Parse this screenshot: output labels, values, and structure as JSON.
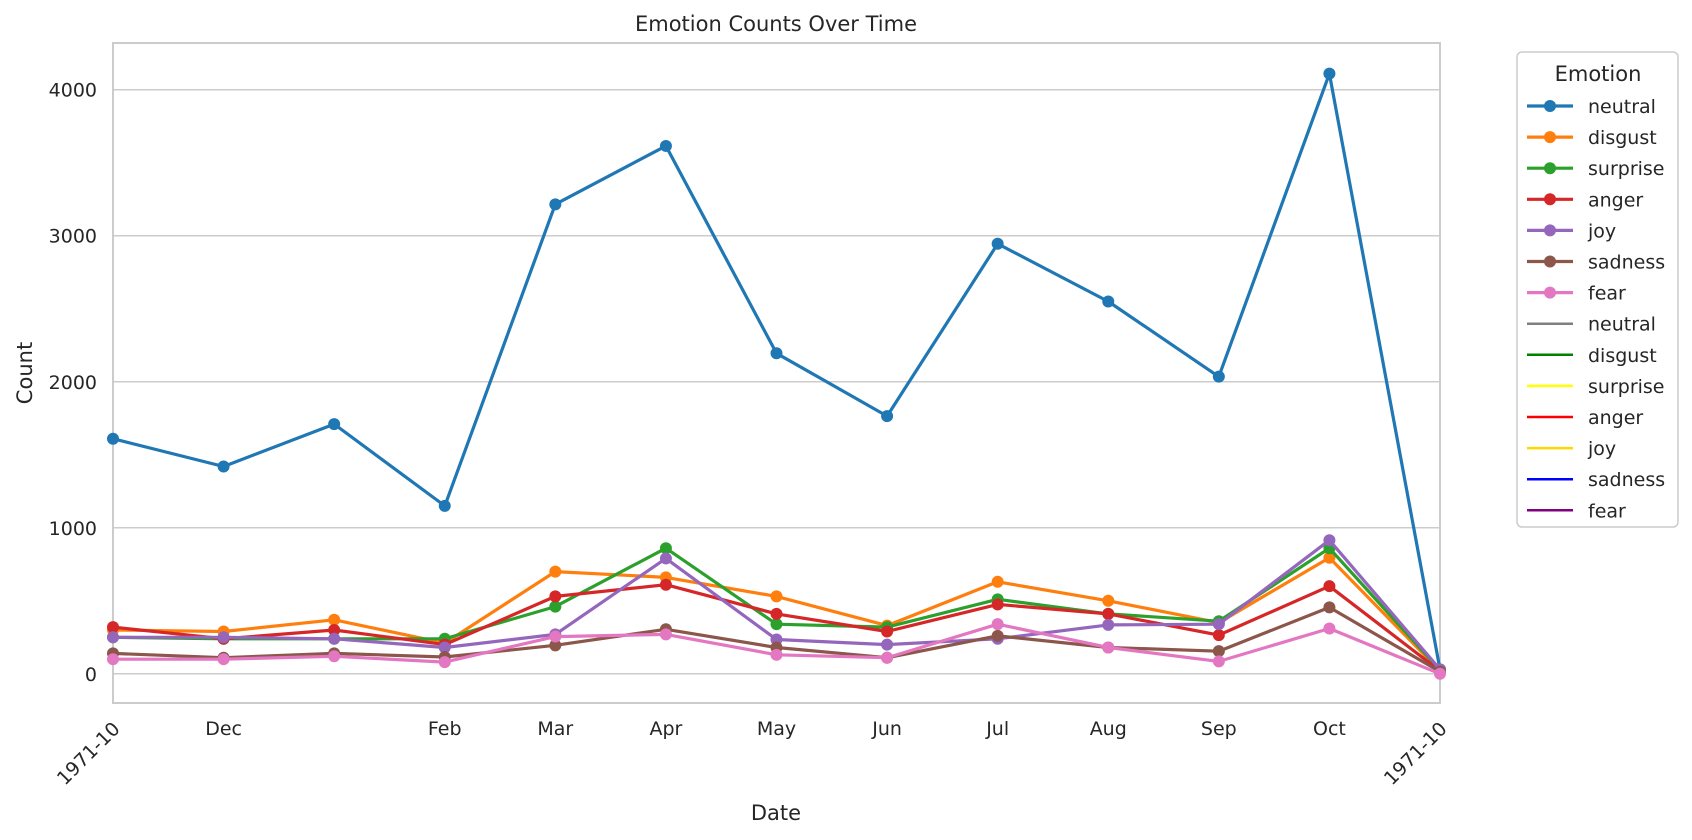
{
  "chart_data": {
    "type": "line",
    "title": "Emotion Counts Over Time",
    "xlabel": "Date",
    "ylabel": "Count",
    "ylim": [
      -200,
      4320
    ],
    "grid": "y",
    "legend_position": "outside-right",
    "legend_title": "Emotion",
    "x_tick_labels": [
      "1971-10",
      "Dec",
      "Feb",
      "Mar",
      "Apr",
      "May",
      "Jun",
      "Jul",
      "Aug",
      "Sep",
      "Oct",
      "1971-10"
    ],
    "x_tick_index": [
      0,
      1,
      3,
      4,
      5,
      6,
      7,
      8,
      9,
      10,
      11,
      12
    ],
    "x_tick_rotated": [
      true,
      false,
      false,
      false,
      false,
      false,
      false,
      false,
      false,
      false,
      false,
      true
    ],
    "y_ticks": [
      0,
      1000,
      2000,
      3000,
      4000
    ],
    "series": [
      {
        "name": "neutral",
        "color": "#1f77b4",
        "values": [
          1610,
          1420,
          1710,
          1150,
          3215,
          3615,
          2195,
          1765,
          2945,
          2550,
          2035,
          4110,
          30
        ]
      },
      {
        "name": "disgust",
        "color": "#ff7f0e",
        "values": [
          300,
          290,
          370,
          210,
          700,
          660,
          530,
          330,
          630,
          500,
          350,
          795,
          20
        ]
      },
      {
        "name": "surprise",
        "color": "#2ca02c",
        "values": [
          250,
          240,
          240,
          240,
          460,
          860,
          340,
          320,
          510,
          410,
          360,
          860,
          25
        ]
      },
      {
        "name": "anger",
        "color": "#d62728",
        "values": [
          320,
          240,
          300,
          200,
          530,
          610,
          410,
          290,
          475,
          410,
          265,
          600,
          20
        ]
      },
      {
        "name": "joy",
        "color": "#9467bd",
        "values": [
          250,
          250,
          240,
          180,
          270,
          790,
          235,
          200,
          240,
          335,
          340,
          915,
          30
        ]
      },
      {
        "name": "sadness",
        "color": "#8c564b",
        "values": [
          140,
          110,
          140,
          115,
          195,
          305,
          180,
          110,
          260,
          180,
          155,
          455,
          15
        ]
      },
      {
        "name": "fear",
        "color": "#e377c2",
        "values": [
          100,
          100,
          120,
          80,
          255,
          270,
          130,
          110,
          340,
          180,
          85,
          310,
          0
        ]
      }
    ],
    "legend_extra": [
      {
        "name": "neutral",
        "color": "#7f7f7f"
      },
      {
        "name": "disgust",
        "color": "#008000"
      },
      {
        "name": "surprise",
        "color": "#ffff00"
      },
      {
        "name": "anger",
        "color": "#ff0000"
      },
      {
        "name": "joy",
        "color": "#ffd700"
      },
      {
        "name": "sadness",
        "color": "#0000ff"
      },
      {
        "name": "fear",
        "color": "#800080"
      }
    ]
  }
}
